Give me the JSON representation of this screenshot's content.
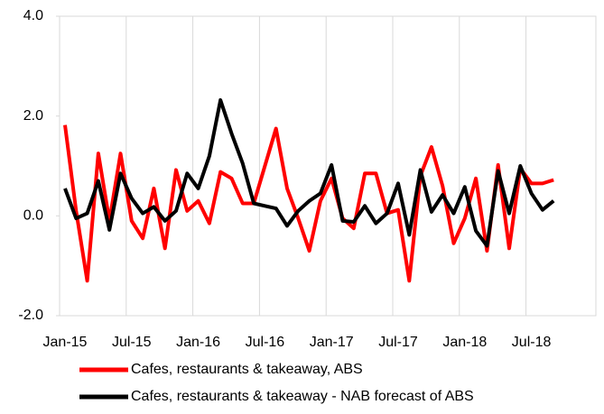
{
  "chart_data": {
    "type": "line",
    "categories": [
      "Jan-15",
      null,
      null,
      null,
      null,
      null,
      "Jul-15",
      null,
      null,
      null,
      null,
      null,
      "Jan-16",
      null,
      null,
      null,
      null,
      null,
      "Jul-16",
      null,
      null,
      null,
      null,
      null,
      "Jan-17",
      null,
      null,
      null,
      null,
      null,
      "Jul-17",
      null,
      null,
      null,
      null,
      null,
      "Jan-18",
      null,
      null,
      null,
      null,
      null,
      "Jul-18",
      null,
      null
    ],
    "series": [
      {
        "name": "Cafes, restaurants & takeaway, ABS",
        "color": "#ff0000",
        "values": [
          1.82,
          0.1,
          -1.3,
          1.25,
          -0.1,
          1.25,
          -0.1,
          -0.45,
          0.55,
          -0.65,
          0.92,
          0.1,
          0.3,
          -0.15,
          0.88,
          0.75,
          0.25,
          0.25,
          1.0,
          1.75,
          0.55,
          -0.05,
          -0.7,
          0.3,
          0.75,
          -0.05,
          -0.25,
          0.85,
          0.85,
          0.05,
          0.12,
          -1.3,
          0.8,
          1.38,
          0.6,
          -0.55,
          -0.05,
          0.75,
          -0.7,
          1.02,
          -0.65,
          0.95,
          0.65,
          0.65,
          0.72
        ]
      },
      {
        "name": "Cafes, restaurants & takeaway - NAB forecast of ABS",
        "color": "#000000",
        "values": [
          0.55,
          -0.05,
          0.05,
          0.7,
          -0.28,
          0.85,
          0.35,
          0.05,
          0.18,
          -0.1,
          0.1,
          0.85,
          0.55,
          1.2,
          2.32,
          1.65,
          1.05,
          0.25,
          0.2,
          0.15,
          -0.2,
          0.1,
          0.3,
          0.45,
          1.02,
          -0.1,
          -0.12,
          0.2,
          -0.15,
          0.05,
          0.65,
          -0.38,
          0.92,
          0.08,
          0.42,
          0.05,
          0.58,
          -0.3,
          -0.6,
          0.9,
          0.05,
          1.0,
          0.45,
          0.12,
          0.3
        ]
      }
    ],
    "ylim": [
      -2,
      4
    ],
    "yticks": [
      {
        "value": -2,
        "label": "-2.0"
      },
      {
        "value": 0,
        "label": "0.0"
      },
      {
        "value": 2,
        "label": "2.0"
      },
      {
        "value": 4,
        "label": "4.0"
      }
    ],
    "xgrid": true,
    "legend": "bottom"
  }
}
